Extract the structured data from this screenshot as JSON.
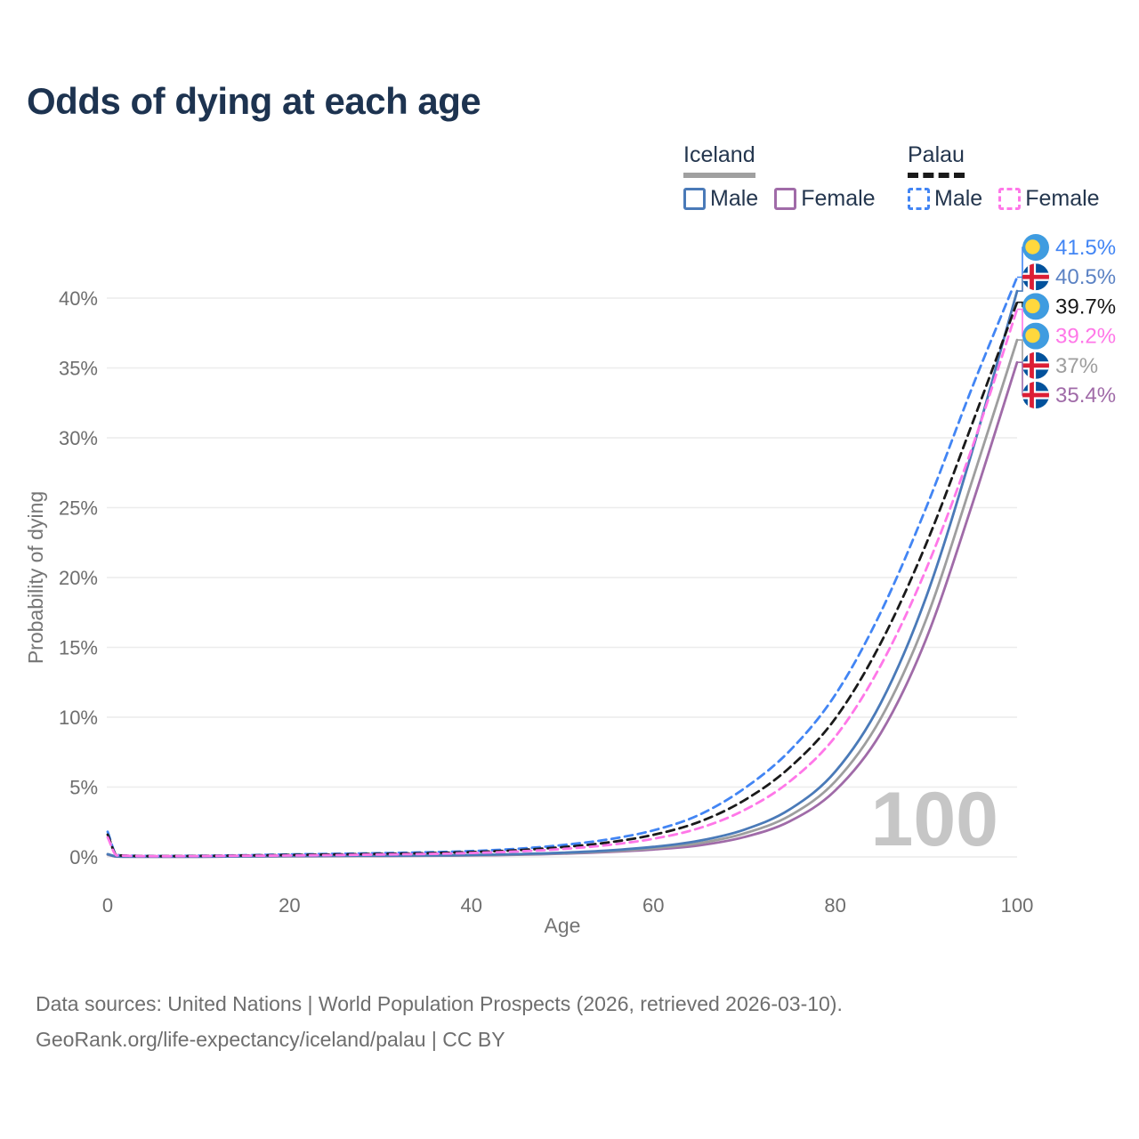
{
  "title": "Odds of dying at each age",
  "legend": {
    "groups": [
      {
        "name": "Iceland",
        "line_style": "solid",
        "line_color": "#a0a0a0",
        "items": [
          {
            "label": "Male",
            "color": "#4a7ab8",
            "style": "solid"
          },
          {
            "label": "Female",
            "color": "#a06ba8",
            "style": "solid"
          }
        ]
      },
      {
        "name": "Palau",
        "line_style": "dashed",
        "line_color": "#1a1a1a",
        "items": [
          {
            "label": "Male",
            "color": "#4285f4",
            "style": "dashed"
          },
          {
            "label": "Female",
            "color": "#ff77e8",
            "style": "dashed"
          }
        ]
      }
    ]
  },
  "watermark": "100",
  "footer": {
    "line1": "Data sources: United Nations | World Population Prospects (2026, retrieved 2026-03-10).",
    "line2": "GeoRank.org/life-expectancy/iceland/palau | CC BY"
  },
  "chart_data": {
    "type": "line",
    "title": "Odds of dying at each age",
    "xlabel": "Age",
    "ylabel": "Probability of dying",
    "xlim": [
      0,
      100
    ],
    "ylim_percent": [
      0,
      43
    ],
    "x_ticks": [
      0,
      20,
      40,
      60,
      80,
      100
    ],
    "y_ticks_percent": [
      0,
      5,
      10,
      15,
      20,
      25,
      30,
      35,
      40
    ],
    "grid": true,
    "legend_position": "top-right",
    "ages": [
      0,
      1,
      2,
      5,
      10,
      15,
      20,
      25,
      30,
      35,
      40,
      45,
      50,
      55,
      60,
      65,
      70,
      75,
      80,
      85,
      90,
      95,
      100
    ],
    "series": [
      {
        "name": "Palau Male",
        "country": "Palau",
        "sex": "Male",
        "color": "#4285f4",
        "dash": "dashed",
        "flag": "palau",
        "end_label": "41.5%",
        "end_label_color": "#4285f4",
        "end_value_percent": 41.5,
        "values_percent": [
          1.8,
          0.15,
          0.1,
          0.07,
          0.08,
          0.12,
          0.18,
          0.22,
          0.27,
          0.33,
          0.42,
          0.58,
          0.85,
          1.25,
          1.9,
          3.0,
          4.9,
          7.6,
          11.6,
          17.5,
          25.0,
          33.5,
          41.5
        ]
      },
      {
        "name": "Iceland Male",
        "country": "Iceland",
        "sex": "Male",
        "color": "#4a7ab8",
        "dash": "solid",
        "flag": "iceland",
        "end_label": "40.5%",
        "end_label_color": "#5b82c4",
        "end_value_percent": 40.5,
        "values_percent": [
          0.2,
          0.03,
          0.02,
          0.02,
          0.02,
          0.04,
          0.07,
          0.08,
          0.09,
          0.1,
          0.14,
          0.2,
          0.3,
          0.46,
          0.72,
          1.15,
          1.95,
          3.4,
          6.1,
          11.0,
          18.6,
          28.9,
          40.5
        ]
      },
      {
        "name": "Palau Both sexes",
        "country": "Palau",
        "sex": "Both sexes",
        "color": "#1a1a1a",
        "dash": "dashed",
        "flag": "palau",
        "end_label": "39.7%",
        "end_label_color": "#1a1a1a",
        "end_value_percent": 39.7,
        "values_percent": [
          1.6,
          0.13,
          0.09,
          0.06,
          0.07,
          0.1,
          0.14,
          0.18,
          0.22,
          0.27,
          0.35,
          0.48,
          0.7,
          1.03,
          1.58,
          2.5,
          4.05,
          6.4,
          9.9,
          15.3,
          22.4,
          30.9,
          39.7
        ]
      },
      {
        "name": "Palau Female",
        "country": "Palau",
        "sex": "Female",
        "color": "#ff77e8",
        "dash": "dashed",
        "flag": "palau",
        "end_label": "39.2%",
        "end_label_color": "#ff77e8",
        "end_value_percent": 39.2,
        "values_percent": [
          1.4,
          0.11,
          0.08,
          0.05,
          0.06,
          0.08,
          0.1,
          0.13,
          0.17,
          0.21,
          0.28,
          0.39,
          0.57,
          0.85,
          1.3,
          2.05,
          3.35,
          5.4,
          8.6,
          13.7,
          20.6,
          29.2,
          39.2
        ]
      },
      {
        "name": "Iceland Both sexes",
        "country": "Iceland",
        "sex": "Both sexes",
        "color": "#9e9e9e",
        "dash": "solid",
        "flag": "iceland",
        "end_label": "37%",
        "end_label_color": "#9e9e9e",
        "end_value_percent": 37.0,
        "values_percent": [
          0.18,
          0.03,
          0.02,
          0.02,
          0.02,
          0.03,
          0.05,
          0.06,
          0.07,
          0.09,
          0.12,
          0.17,
          0.26,
          0.4,
          0.62,
          0.98,
          1.68,
          2.95,
          5.4,
          9.9,
          17.0,
          26.8,
          37.0
        ]
      },
      {
        "name": "Iceland Female",
        "country": "Iceland",
        "sex": "Female",
        "color": "#a06ba8",
        "dash": "solid",
        "flag": "iceland",
        "end_label": "35.4%",
        "end_label_color": "#a06ba8",
        "end_value_percent": 35.4,
        "values_percent": [
          0.16,
          0.02,
          0.02,
          0.01,
          0.01,
          0.03,
          0.04,
          0.05,
          0.06,
          0.08,
          0.1,
          0.15,
          0.23,
          0.35,
          0.53,
          0.82,
          1.42,
          2.55,
          4.75,
          8.85,
          15.6,
          25.1,
          35.4
        ]
      }
    ]
  }
}
